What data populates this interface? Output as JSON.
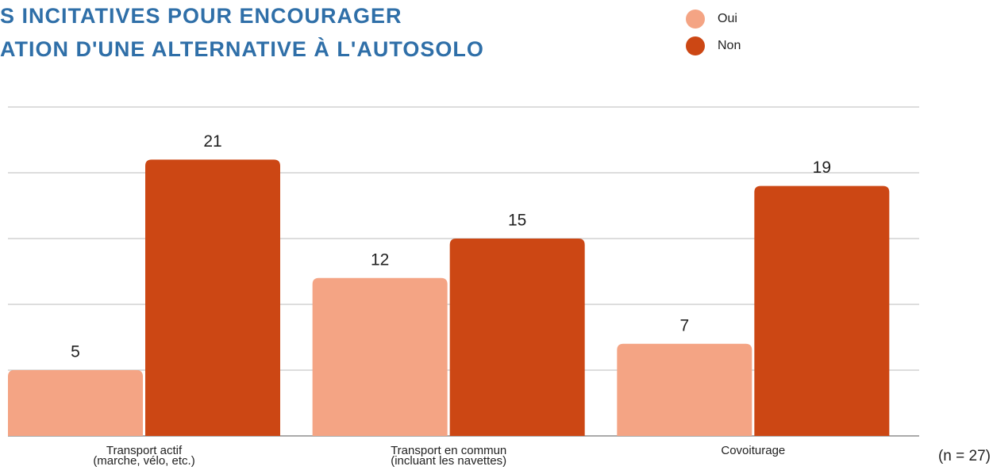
{
  "chart_data": {
    "type": "bar",
    "title": [
      "S INCITATIVES POUR ENCOURAGER",
      "ATION D'UNE ALTERNATIVE À L'AUTOSOLO"
    ],
    "categories": [
      [
        "Transport actif",
        "(marche, vélo, etc.)"
      ],
      [
        "Transport en commun",
        "(incluant les navettes)"
      ],
      [
        "Covoiturage"
      ]
    ],
    "series": [
      {
        "name": "Oui",
        "color": "#f4a484",
        "values": [
          5,
          12,
          7
        ]
      },
      {
        "name": "Non",
        "color": "#cc4714",
        "values": [
          21,
          15,
          19
        ]
      }
    ],
    "ylim": [
      0,
      25
    ],
    "yticks": [
      0,
      5,
      10,
      15,
      20,
      25
    ],
    "grid": true,
    "note": "(n = 27)"
  }
}
